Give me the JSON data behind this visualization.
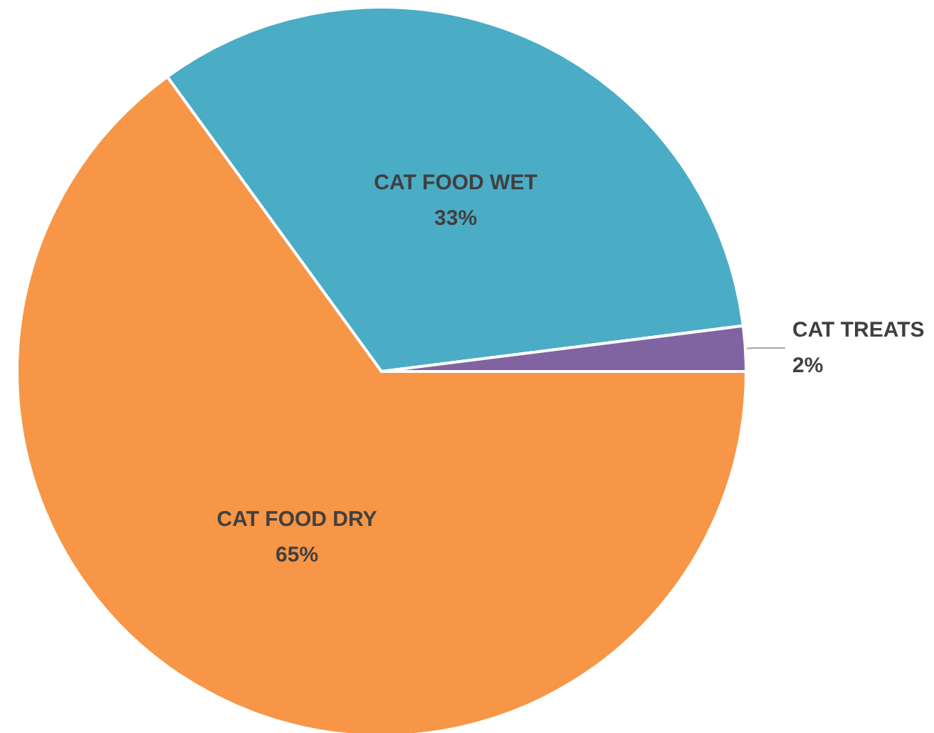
{
  "chart_data": {
    "type": "pie",
    "categories": [
      "CAT FOOD DRY",
      "CAT FOOD WET",
      "CAT TREATS"
    ],
    "values": [
      65,
      33,
      2
    ],
    "colors": [
      "#f79646",
      "#4bacc6",
      "#8064a2"
    ],
    "value_labels": [
      "65%",
      "33%",
      "2%"
    ],
    "legend": false
  }
}
